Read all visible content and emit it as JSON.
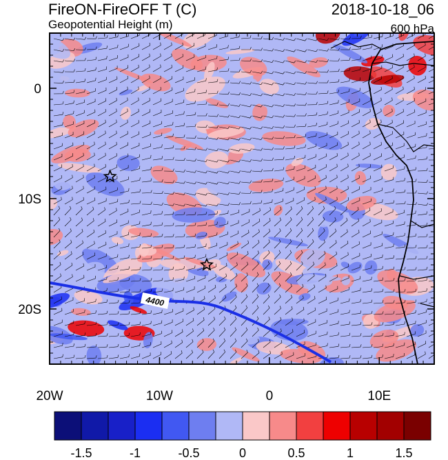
{
  "header": {
    "title": "FireON-FireOFF T (C)",
    "subtitle": "Geopotential Height (m)",
    "datetime": "2018-10-18_06",
    "level": "600 hPa"
  },
  "map": {
    "x_ticks": [
      "20W",
      "10W",
      "0",
      "10E"
    ],
    "y_ticks": [
      "0",
      "10S",
      "20S"
    ],
    "lon_range": [
      -20,
      15
    ],
    "lat_range": [
      -25,
      5
    ],
    "contour_label": "4400",
    "markers": [
      {
        "name": "star-marker-west",
        "lon": -14.5,
        "lat": -8.0
      },
      {
        "name": "star-marker-south",
        "lon": -5.7,
        "lat": -16.0
      }
    ]
  },
  "colorbar": {
    "labels": [
      "-1.5",
      "-1",
      "-0.5",
      "0",
      "0.5",
      "1",
      "1.5"
    ],
    "label_values": [
      -1.5,
      -1,
      -0.5,
      0,
      0.5,
      1,
      1.5
    ],
    "range": [
      -1.75,
      1.75
    ],
    "colors": [
      "#0c0f78",
      "#1019a8",
      "#1820c8",
      "#1b2ef2",
      "#4158f2",
      "#6e7ef0",
      "#b0b8f6",
      "#fac8c8",
      "#f78a8a",
      "#f24040",
      "#ee0000",
      "#b80000",
      "#a20000",
      "#7a0000"
    ]
  }
}
